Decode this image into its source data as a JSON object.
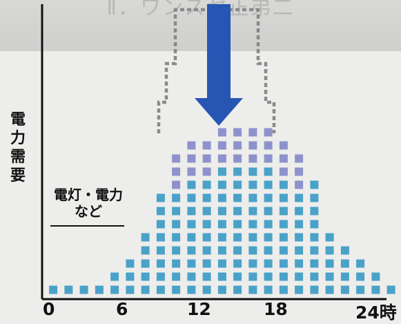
{
  "header": {
    "text": "Ⅱ．ワンスヤ正弟二"
  },
  "ylabel": "電力需要",
  "note": {
    "line1": "電灯・電力",
    "line2": "など"
  },
  "x_axis": {
    "ticks": [
      "0",
      "6",
      "12",
      "18",
      "24時"
    ]
  },
  "colors": {
    "square": "#4aa2c8",
    "square_shifted": "#8e92cc",
    "arrow": "#2655b3",
    "dotted_outline": "#8a8a8a",
    "axis": "#111111"
  },
  "demand_levels": [
    1,
    1,
    1,
    1,
    2,
    3,
    5,
    8,
    11,
    12,
    12,
    13,
    13,
    13,
    13,
    12,
    11,
    9,
    5,
    4,
    3,
    2,
    1,
    1
  ],
  "shifted_top_rows": 3,
  "shifted_hours": [
    8,
    9,
    10,
    11,
    12,
    13,
    14,
    15,
    16
  ]
}
